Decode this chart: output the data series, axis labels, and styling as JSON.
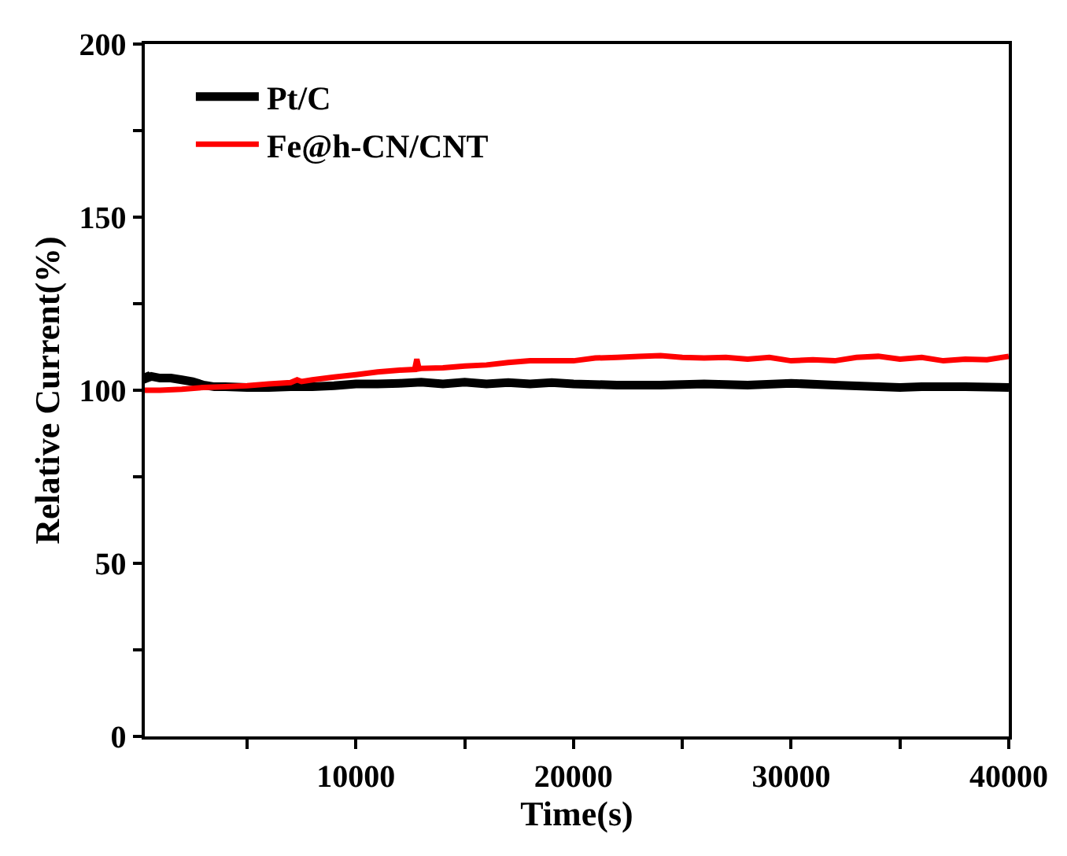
{
  "chart_data": {
    "type": "line",
    "xlabel": "Time(s)",
    "ylabel": "Relative Current(%)",
    "xlim": [
      300,
      40000
    ],
    "ylim": [
      0,
      200
    ],
    "xticks": [
      {
        "value": 5000,
        "label": null
      },
      10000,
      {
        "value": 15000,
        "label": null
      },
      20000,
      {
        "value": 25000,
        "label": null
      },
      30000,
      {
        "value": 35000,
        "label": null
      },
      40000
    ],
    "yticks": [
      0,
      {
        "value": 25,
        "label": null
      },
      50,
      {
        "value": 75,
        "label": null
      },
      100,
      {
        "value": 125,
        "label": null
      },
      150,
      {
        "value": 175,
        "label": null
      },
      200
    ],
    "legend": "top left",
    "marker": "none",
    "line_style": "solid",
    "series": [
      {
        "name": "Pt/C",
        "color": "#000000",
        "x": [
          300,
          400,
          600,
          1000,
          1500,
          2000,
          2500,
          3000,
          3500,
          4000,
          5000,
          6000,
          7000,
          8000,
          9000,
          10000,
          11000,
          12000,
          13000,
          14000,
          15000,
          16000,
          17000,
          18000,
          19000,
          20000,
          22000,
          24000,
          26000,
          28000,
          30000,
          32000,
          34000,
          35000,
          36000,
          38000,
          40000
        ],
        "values": [
          105,
          103.5,
          104,
          103.5,
          103.5,
          103,
          102.5,
          101.5,
          101,
          101,
          100.8,
          100.8,
          101,
          101,
          101.3,
          101.8,
          101.8,
          102,
          102.3,
          101.8,
          102.3,
          101.8,
          102.2,
          101.8,
          102.2,
          101.8,
          101.5,
          101.5,
          101.8,
          101.5,
          102,
          101.5,
          101,
          100.8,
          101,
          101,
          100.8
        ]
      },
      {
        "name": "Fe@h-CN/CNT",
        "color": "#ff0000",
        "x": [
          300,
          1000,
          2000,
          3000,
          4000,
          5000,
          6000,
          7000,
          7300,
          7500,
          8000,
          9000,
          10000,
          11000,
          12000,
          12700,
          12800,
          12900,
          13000,
          14000,
          15000,
          16000,
          17000,
          18000,
          19000,
          20000,
          21000,
          22000,
          23000,
          24000,
          25000,
          26000,
          27000,
          28000,
          29000,
          30000,
          31000,
          32000,
          33000,
          34000,
          35000,
          36000,
          37000,
          38000,
          39000,
          40000
        ],
        "values": [
          100,
          100,
          100.3,
          100.8,
          101,
          101.3,
          101.8,
          102.2,
          103,
          102.5,
          103,
          103.8,
          104.5,
          105.3,
          105.8,
          106,
          109,
          106.2,
          106.3,
          106.5,
          107,
          107.3,
          108,
          108.5,
          108.5,
          108.5,
          109.3,
          109.5,
          109.8,
          110,
          109.5,
          109.3,
          109.5,
          109,
          109.5,
          108.5,
          108.8,
          108.5,
          109.5,
          109.8,
          109,
          109.5,
          108.5,
          109,
          108.8,
          109.8
        ]
      }
    ]
  }
}
